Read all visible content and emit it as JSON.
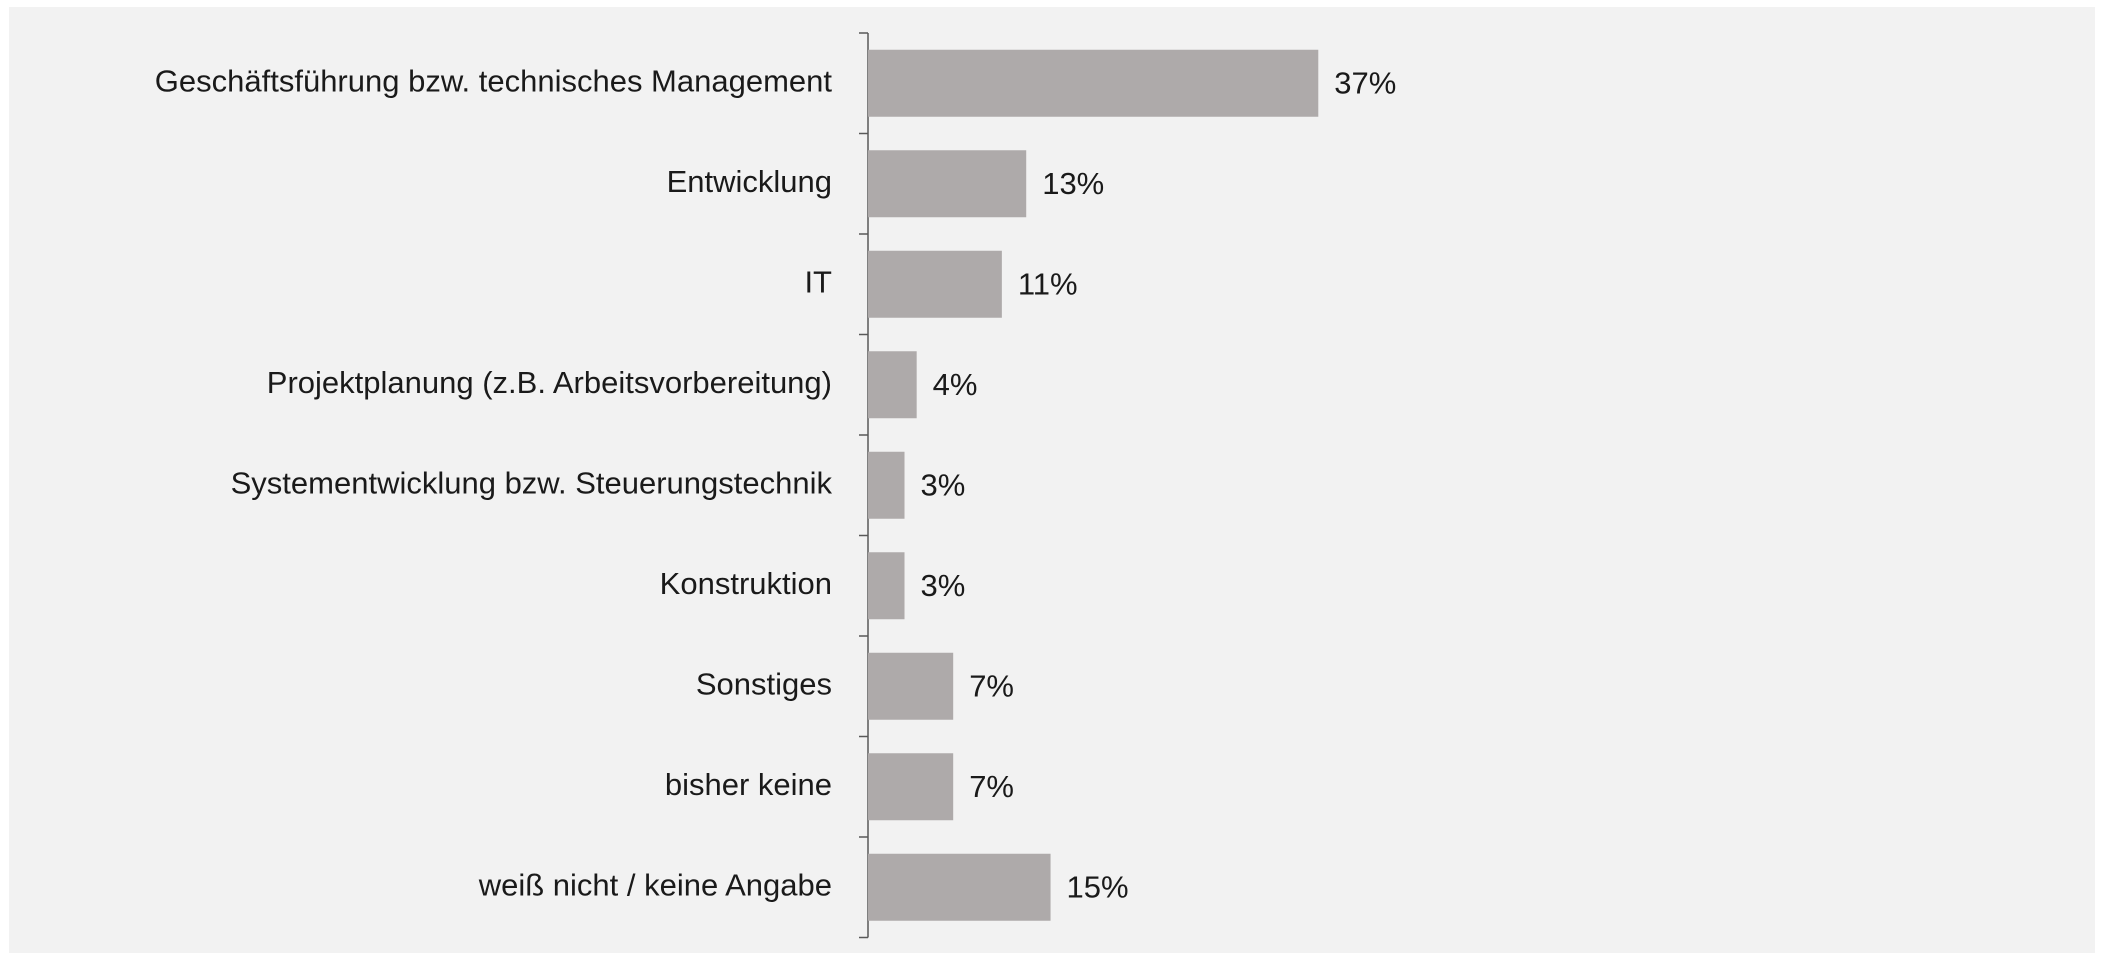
{
  "chart_data": {
    "type": "bar",
    "orientation": "horizontal",
    "categories": [
      "Geschäftsführung bzw. technisches Management",
      "Entwicklung",
      "IT",
      "Projektplanung (z.B. Arbeitsvorbereitung)",
      "Systementwicklung bzw. Steuerungstechnik",
      "Konstruktion",
      "Sonstiges",
      "bisher keine",
      "weiß nicht / keine Angabe"
    ],
    "values": [
      37,
      13,
      11,
      4,
      3,
      3,
      7,
      7,
      15
    ],
    "value_labels": [
      "37%",
      "13%",
      "11%",
      "4%",
      "3%",
      "3%",
      "7%",
      "7%",
      "15%"
    ],
    "color": "#aeaaaa"
  }
}
